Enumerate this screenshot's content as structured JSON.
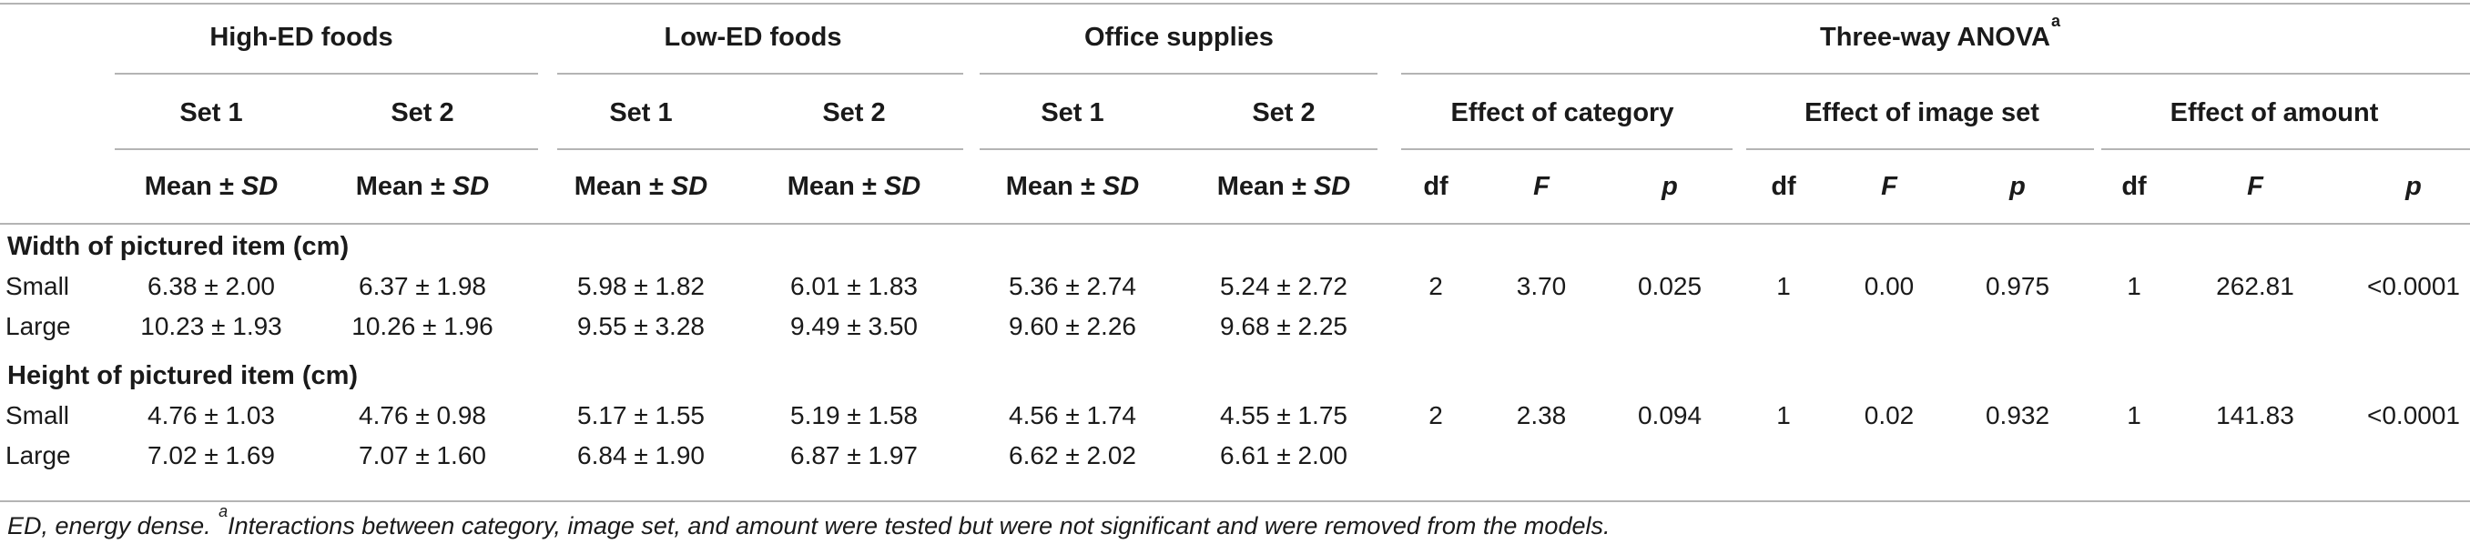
{
  "groups": {
    "high_ed": "High-ED foods",
    "low_ed": "Low-ED foods",
    "office": "Office supplies",
    "anova": "Three-way ANOVA",
    "anova_sup": "a"
  },
  "sets": {
    "set1": "Set 1",
    "set2": "Set 2"
  },
  "effects": {
    "category": "Effect of category",
    "image_set": "Effect of image set",
    "amount": "Effect of amount"
  },
  "col_labels": {
    "mean": "Mean ± ",
    "sd": "SD",
    "df": "df",
    "F": "F",
    "p": "p"
  },
  "sections": [
    {
      "title": "Width of pictured item (cm)",
      "rows": [
        {
          "label": "Small",
          "values": [
            "6.38 ± 2.00",
            "6.37 ± 1.98",
            "5.98 ± 1.82",
            "6.01 ± 1.83",
            "5.36 ± 2.74",
            "5.24 ± 2.72"
          ],
          "anova": [
            "2",
            "3.70",
            "0.025",
            "1",
            "0.00",
            "0.975",
            "1",
            "262.81",
            "<0.0001"
          ]
        },
        {
          "label": "Large",
          "values": [
            "10.23 ± 1.93",
            "10.26 ± 1.96",
            "9.55 ± 3.28",
            "9.49 ± 3.50",
            "9.60 ± 2.26",
            "9.68 ± 2.25"
          ]
        }
      ]
    },
    {
      "title": "Height of pictured item (cm)",
      "rows": [
        {
          "label": "Small",
          "values": [
            "4.76 ± 1.03",
            "4.76 ± 0.98",
            "5.17 ± 1.55",
            "5.19 ± 1.58",
            "4.56 ± 1.74",
            "4.55 ± 1.75"
          ],
          "anova": [
            "2",
            "2.38",
            "0.094",
            "1",
            "0.02",
            "0.932",
            "1",
            "141.83",
            "<0.0001"
          ]
        },
        {
          "label": "Large",
          "values": [
            "7.02 ± 1.69",
            "7.07 ± 1.60",
            "6.84 ± 1.90",
            "6.87 ± 1.97",
            "6.62 ± 2.02",
            "6.61 ± 2.00"
          ]
        }
      ]
    }
  ],
  "footnote": {
    "text1": "ED, energy dense. ",
    "sup": "a",
    "text2": "Interactions between category, image set, and amount were tested but were not significant and were removed from the models."
  }
}
